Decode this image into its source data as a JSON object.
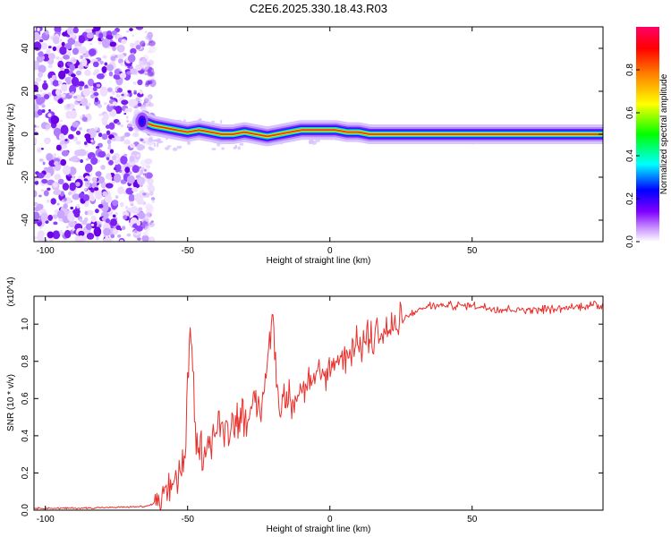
{
  "figure": {
    "title": "C2E6.2025.330.18.43.R03"
  },
  "chart_data": [
    {
      "type": "heatmap",
      "title": "C2E6.2025.330.18.43.R03",
      "xlabel": "Height of straight line (km)",
      "ylabel": "Frequency (Hz)",
      "xlim": [
        -104,
        96
      ],
      "ylim": [
        -50,
        50
      ],
      "xticks": [
        -100,
        -50,
        0,
        50
      ],
      "yticks": [
        -40,
        -20,
        0,
        20,
        40
      ],
      "colorbar": {
        "label": "Normalized spectral amplitude",
        "range": [
          0,
          1
        ],
        "ticks": [
          "0.0",
          "0.2",
          "0.4",
          "0.6",
          "0.8"
        ],
        "colors": [
          "#ffffff",
          "#cc99ff",
          "#8000ff",
          "#0000ff",
          "#00ffff",
          "#00ff00",
          "#ffff00",
          "#ff8000",
          "#ff0000",
          "#ff0066"
        ]
      },
      "noise_region_km": [
        -104,
        -62
      ],
      "ridge": [
        {
          "x": -66,
          "y": 6
        },
        {
          "x": -62,
          "y": 4
        },
        {
          "x": -58,
          "y": 3
        },
        {
          "x": -54,
          "y": 2
        },
        {
          "x": -50,
          "y": 1
        },
        {
          "x": -46,
          "y": 2
        },
        {
          "x": -42,
          "y": 1
        },
        {
          "x": -38,
          "y": 0
        },
        {
          "x": -34,
          "y": 0
        },
        {
          "x": -30,
          "y": 1
        },
        {
          "x": -26,
          "y": 0
        },
        {
          "x": -22,
          "y": -1
        },
        {
          "x": -18,
          "y": 0
        },
        {
          "x": -14,
          "y": 1
        },
        {
          "x": -10,
          "y": 2
        },
        {
          "x": -6,
          "y": 2
        },
        {
          "x": -2,
          "y": 2
        },
        {
          "x": 2,
          "y": 2
        },
        {
          "x": 6,
          "y": 1
        },
        {
          "x": 10,
          "y": 1
        },
        {
          "x": 14,
          "y": 0
        },
        {
          "x": 18,
          "y": 0
        },
        {
          "x": 22,
          "y": 0
        },
        {
          "x": 26,
          "y": 0
        },
        {
          "x": 40,
          "y": 0
        },
        {
          "x": 60,
          "y": 0
        },
        {
          "x": 80,
          "y": 0
        },
        {
          "x": 96,
          "y": 0
        }
      ]
    },
    {
      "type": "line",
      "xlabel": "Height of straight line (km)",
      "ylabel": "SNR (10 * v/v)",
      "yscale_label": "(x10^4)",
      "xlim": [
        -104,
        96
      ],
      "ylim": [
        0,
        1.15
      ],
      "xticks": [
        -100,
        -50,
        0,
        50
      ],
      "yticks": [
        "0.0",
        "0.2",
        "0.4",
        "0.6",
        "0.8",
        "1.0"
      ],
      "series": [
        {
          "name": "SNR",
          "color": "#e8302c",
          "points": [
            {
              "x": -104,
              "y": 0.01
            },
            {
              "x": -90,
              "y": 0.01
            },
            {
              "x": -75,
              "y": 0.015
            },
            {
              "x": -65,
              "y": 0.02
            },
            {
              "x": -60,
              "y": 0.04
            },
            {
              "x": -57,
              "y": 0.1
            },
            {
              "x": -54,
              "y": 0.18
            },
            {
              "x": -51,
              "y": 0.24
            },
            {
              "x": -49,
              "y": 1.02
            },
            {
              "x": -47,
              "y": 0.3
            },
            {
              "x": -44,
              "y": 0.34
            },
            {
              "x": -40,
              "y": 0.42
            },
            {
              "x": -36,
              "y": 0.46
            },
            {
              "x": -32,
              "y": 0.5
            },
            {
              "x": -28,
              "y": 0.52
            },
            {
              "x": -24,
              "y": 0.55
            },
            {
              "x": -20,
              "y": 1.05
            },
            {
              "x": -18,
              "y": 0.55
            },
            {
              "x": -14,
              "y": 0.6
            },
            {
              "x": -10,
              "y": 0.65
            },
            {
              "x": -6,
              "y": 0.7
            },
            {
              "x": -2,
              "y": 0.72
            },
            {
              "x": 2,
              "y": 0.8
            },
            {
              "x": 6,
              "y": 0.85
            },
            {
              "x": 10,
              "y": 0.88
            },
            {
              "x": 14,
              "y": 0.92
            },
            {
              "x": 18,
              "y": 0.95
            },
            {
              "x": 22,
              "y": 0.97
            },
            {
              "x": 26,
              "y": 1.02
            },
            {
              "x": 30,
              "y": 1.07
            },
            {
              "x": 35,
              "y": 1.1
            },
            {
              "x": 40,
              "y": 1.1
            },
            {
              "x": 50,
              "y": 1.1
            },
            {
              "x": 60,
              "y": 1.08
            },
            {
              "x": 70,
              "y": 1.08
            },
            {
              "x": 80,
              "y": 1.08
            },
            {
              "x": 90,
              "y": 1.1
            },
            {
              "x": 96,
              "y": 1.1
            }
          ]
        }
      ]
    }
  ]
}
